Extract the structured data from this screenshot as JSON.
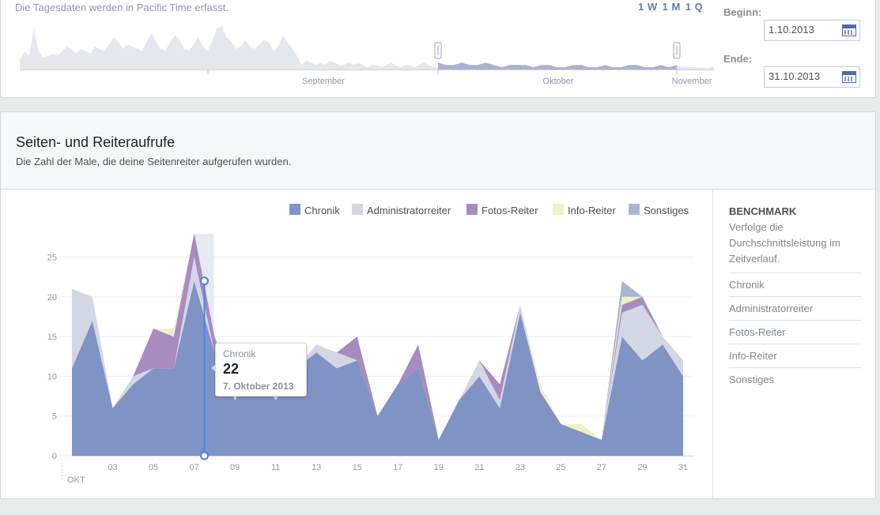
{
  "overview": {
    "note": "Die Tagesdaten werden in Pacific Time erfasst.",
    "ranges": [
      "1 W",
      "1 M",
      "1 Q"
    ],
    "begin_label": "Beginn:",
    "begin_value": "1.10.2013",
    "end_label": "Ende:",
    "end_value": "31.10.2013",
    "timeline_labels": [
      "September",
      "Oktober",
      "November"
    ],
    "timeline_values": [
      4,
      8,
      6,
      18,
      8,
      5,
      6,
      7,
      6,
      8,
      10,
      9,
      7,
      9,
      8,
      7,
      10,
      9,
      8,
      11,
      14,
      12,
      9,
      11,
      10,
      9,
      8,
      12,
      16,
      12,
      9,
      8,
      12,
      15,
      13,
      9,
      8,
      11,
      14,
      10,
      8,
      13,
      18,
      19,
      14,
      12,
      9,
      10,
      13,
      10,
      9,
      11,
      13,
      12,
      8,
      10,
      15,
      12,
      9,
      6,
      2,
      4,
      3,
      2,
      3,
      2,
      4,
      3,
      2,
      2,
      3,
      2,
      3,
      2,
      1,
      2,
      2,
      1,
      2,
      3,
      2,
      1,
      2,
      2,
      1,
      2,
      3,
      2,
      1,
      1
    ],
    "window_values": [
      3,
      2,
      2,
      3,
      2,
      2,
      3,
      2,
      1,
      2,
      2,
      2,
      1,
      2,
      2,
      1,
      1,
      2,
      2,
      1,
      1,
      2,
      1,
      1,
      2,
      2,
      1,
      1,
      2,
      1,
      2
    ]
  },
  "section": {
    "title": "Seiten- und Reiteraufrufe",
    "subtitle": "Die Zahl der Male, die deine Seitenreiter aufgerufen wurden."
  },
  "benchmark": {
    "title": "BENCHMARK",
    "description": "Verfolge die Durchschnittsleistung im Zeitverlauf.",
    "items": [
      "Chronik",
      "Administratorreiter",
      "Fotos-Reiter",
      "Info-Reiter",
      "Sonstiges"
    ]
  },
  "tooltip": {
    "series": "Chronik",
    "value": "22",
    "date": "7. Oktober 2013"
  },
  "chart_data": {
    "type": "area",
    "stacked": true,
    "x": [
      1,
      2,
      3,
      4,
      5,
      6,
      7,
      8,
      9,
      10,
      11,
      12,
      13,
      14,
      15,
      16,
      17,
      18,
      19,
      20,
      21,
      22,
      23,
      24,
      25,
      26,
      27,
      28,
      29,
      30,
      31
    ],
    "x_tick_labels": [
      "03",
      "05",
      "07",
      "09",
      "11",
      "13",
      "15",
      "17",
      "19",
      "21",
      "23",
      "25",
      "27",
      "29",
      "31"
    ],
    "x_tick_values": [
      3,
      5,
      7,
      9,
      11,
      13,
      15,
      17,
      19,
      21,
      23,
      25,
      27,
      29,
      31
    ],
    "x_extra_label": "OKT",
    "ylim": [
      0,
      28
    ],
    "y_ticks": [
      0,
      5,
      10,
      15,
      20,
      25
    ],
    "grid": true,
    "legend_position": "top-right",
    "highlight_x": 7.5,
    "highlight_value": 22,
    "series": [
      {
        "name": "Chronik",
        "color": "#8093c5",
        "values": [
          11,
          17,
          6,
          9,
          11,
          11,
          22,
          13,
          7,
          11,
          7,
          11,
          13,
          11,
          12,
          5,
          9,
          11,
          2,
          7,
          10,
          6,
          18,
          8,
          4,
          3,
          2,
          15,
          12,
          14,
          10
        ]
      },
      {
        "name": "Administratorreiter",
        "color": "#d3d6e3",
        "values": [
          10,
          3,
          0,
          1,
          0,
          0,
          3,
          0,
          1,
          0,
          3,
          0,
          1,
          2,
          0,
          0,
          0,
          0,
          0,
          0,
          2,
          1,
          1,
          0,
          0,
          0,
          0,
          3,
          7,
          1,
          2
        ]
      },
      {
        "name": "Fotos-Reiter",
        "color": "#a88bbf",
        "values": [
          0,
          0,
          0,
          0,
          5,
          4,
          3,
          2,
          0,
          0,
          0,
          0,
          0,
          0,
          3,
          0,
          0,
          3,
          0,
          0,
          0,
          2,
          0,
          0,
          0,
          0,
          0,
          1,
          1,
          0,
          0
        ]
      },
      {
        "name": "Info-Reiter",
        "color": "#f2efc6",
        "values": [
          0,
          0,
          0,
          0,
          0,
          1,
          0,
          0,
          0,
          0,
          0,
          0,
          0,
          0,
          0,
          0,
          0,
          0,
          0,
          0,
          0,
          0,
          0,
          1,
          0,
          1,
          0,
          1,
          0,
          0,
          0
        ]
      },
      {
        "name": "Sonstiges",
        "color": "#a9b6d2",
        "values": [
          0,
          0,
          0,
          0,
          0,
          0,
          0,
          0,
          0,
          0,
          0,
          0,
          0,
          0,
          0,
          0,
          0,
          0,
          0,
          0,
          0,
          0,
          0,
          0,
          0,
          0,
          0,
          2,
          0,
          0,
          0
        ]
      }
    ]
  }
}
